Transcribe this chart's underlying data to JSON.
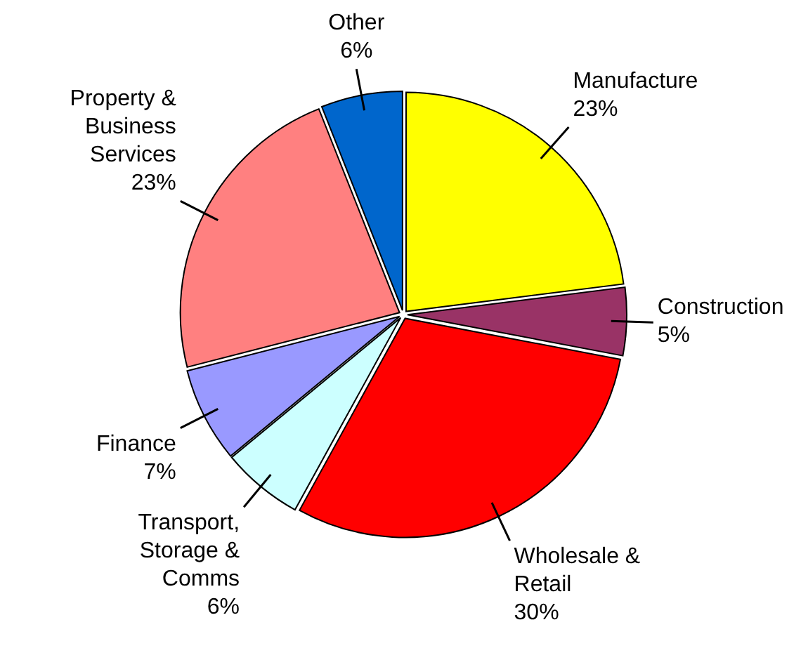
{
  "chart_data": {
    "type": "pie",
    "categories": [
      "Manufacture",
      "Construction",
      "Wholesale & Retail",
      "Transport, Storage & Comms",
      "Finance",
      "Property & Business Services",
      "Other"
    ],
    "values": [
      23,
      5,
      30,
      6,
      7,
      23,
      6
    ],
    "value_labels": [
      "23%",
      "5%",
      "30%",
      "6%",
      "7%",
      "23%",
      "6%"
    ],
    "colors": [
      "#ffff00",
      "#993366",
      "#ff0000",
      "#ccffff",
      "#9999ff",
      "#ff8080",
      "#0066cc"
    ]
  }
}
